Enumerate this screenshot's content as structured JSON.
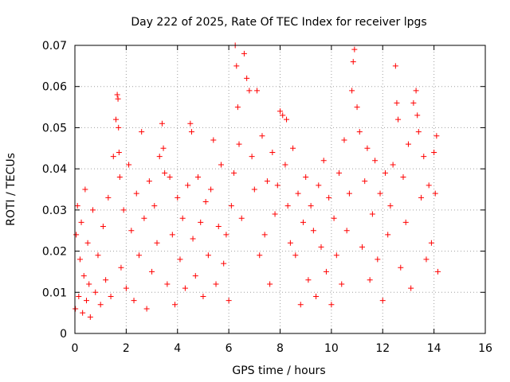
{
  "chart_data": {
    "type": "scatter",
    "title": "Day 222 of 2025, Rate Of TEC Index for receiver lpgs",
    "xlabel": "GPS time / hours",
    "ylabel": "ROTI / TECUs",
    "xlim": [
      0,
      16
    ],
    "ylim": [
      0,
      0.07
    ],
    "x_ticks": [
      0,
      2,
      4,
      6,
      8,
      10,
      12,
      14,
      16
    ],
    "x_tick_labels": [
      "0",
      "2",
      "4",
      "6",
      "8",
      "10",
      "12",
      "14",
      "16"
    ],
    "y_ticks": [
      0,
      0.01,
      0.02,
      0.03,
      0.04,
      0.05,
      0.06,
      0.07
    ],
    "y_tick_labels": [
      "0",
      "0.01",
      "0.02",
      "0.03",
      "0.04",
      "0.05",
      "0.06",
      "0.07"
    ],
    "grid": true,
    "marker": "+",
    "color": "#ff0000",
    "series": [
      {
        "name": "ROTI",
        "x": [
          0.02,
          0.05,
          0.1,
          0.15,
          0.2,
          0.25,
          0.3,
          0.35,
          0.4,
          0.45,
          0.5,
          0.55,
          0.6,
          0.7,
          0.8,
          0.9,
          1.0,
          1.1,
          1.2,
          1.3,
          1.4,
          1.5,
          1.6,
          1.65,
          1.68,
          1.7,
          1.72,
          1.75,
          1.8,
          1.9,
          2.0,
          2.1,
          2.2,
          2.3,
          2.4,
          2.5,
          2.6,
          2.7,
          2.8,
          2.9,
          3.0,
          3.1,
          3.2,
          3.3,
          3.4,
          3.45,
          3.5,
          3.6,
          3.7,
          3.8,
          3.9,
          4.0,
          4.1,
          4.2,
          4.3,
          4.4,
          4.5,
          4.55,
          4.6,
          4.7,
          4.8,
          4.9,
          5.0,
          5.1,
          5.2,
          5.3,
          5.4,
          5.5,
          5.6,
          5.7,
          5.8,
          5.9,
          6.0,
          6.1,
          6.2,
          6.25,
          6.3,
          6.35,
          6.4,
          6.5,
          6.6,
          6.7,
          6.8,
          6.9,
          7.0,
          7.1,
          7.2,
          7.3,
          7.4,
          7.5,
          7.6,
          7.7,
          7.8,
          7.9,
          8.0,
          8.1,
          8.2,
          8.25,
          8.3,
          8.4,
          8.5,
          8.6,
          8.7,
          8.8,
          8.9,
          9.0,
          9.1,
          9.2,
          9.3,
          9.4,
          9.5,
          9.6,
          9.7,
          9.8,
          9.9,
          10.0,
          10.1,
          10.2,
          10.3,
          10.4,
          10.5,
          10.6,
          10.7,
          10.8,
          10.85,
          10.9,
          11.0,
          11.1,
          11.2,
          11.3,
          11.4,
          11.5,
          11.6,
          11.7,
          11.8,
          11.9,
          12.0,
          12.1,
          12.2,
          12.3,
          12.4,
          12.5,
          12.55,
          12.6,
          12.7,
          12.8,
          12.9,
          13.0,
          13.1,
          13.2,
          13.3,
          13.35,
          13.4,
          13.5,
          13.6,
          13.7,
          13.8,
          13.9,
          14.0,
          14.05,
          14.1,
          14.15
        ],
        "y": [
          0.006,
          0.024,
          0.031,
          0.009,
          0.018,
          0.027,
          0.005,
          0.014,
          0.035,
          0.008,
          0.022,
          0.012,
          0.004,
          0.03,
          0.01,
          0.019,
          0.007,
          0.026,
          0.013,
          0.033,
          0.009,
          0.043,
          0.052,
          0.058,
          0.057,
          0.05,
          0.044,
          0.038,
          0.016,
          0.03,
          0.011,
          0.041,
          0.025,
          0.008,
          0.034,
          0.019,
          0.049,
          0.028,
          0.006,
          0.037,
          0.015,
          0.031,
          0.022,
          0.043,
          0.051,
          0.045,
          0.039,
          0.012,
          0.038,
          0.024,
          0.007,
          0.033,
          0.018,
          0.028,
          0.011,
          0.036,
          0.051,
          0.049,
          0.023,
          0.014,
          0.038,
          0.027,
          0.009,
          0.032,
          0.019,
          0.035,
          0.047,
          0.012,
          0.026,
          0.041,
          0.017,
          0.024,
          0.008,
          0.031,
          0.039,
          0.07,
          0.065,
          0.055,
          0.046,
          0.028,
          0.068,
          0.062,
          0.059,
          0.043,
          0.035,
          0.059,
          0.019,
          0.048,
          0.024,
          0.037,
          0.012,
          0.044,
          0.029,
          0.036,
          0.054,
          0.053,
          0.041,
          0.052,
          0.031,
          0.022,
          0.045,
          0.019,
          0.034,
          0.007,
          0.027,
          0.038,
          0.013,
          0.031,
          0.025,
          0.009,
          0.036,
          0.021,
          0.042,
          0.015,
          0.033,
          0.007,
          0.028,
          0.019,
          0.039,
          0.012,
          0.047,
          0.025,
          0.034,
          0.059,
          0.066,
          0.069,
          0.055,
          0.049,
          0.021,
          0.037,
          0.045,
          0.013,
          0.029,
          0.042,
          0.018,
          0.034,
          0.008,
          0.039,
          0.024,
          0.031,
          0.041,
          0.065,
          0.056,
          0.052,
          0.016,
          0.038,
          0.027,
          0.046,
          0.011,
          0.056,
          0.059,
          0.053,
          0.049,
          0.033,
          0.043,
          0.018,
          0.036,
          0.022,
          0.044,
          0.034,
          0.048,
          0.015
        ]
      }
    ]
  }
}
